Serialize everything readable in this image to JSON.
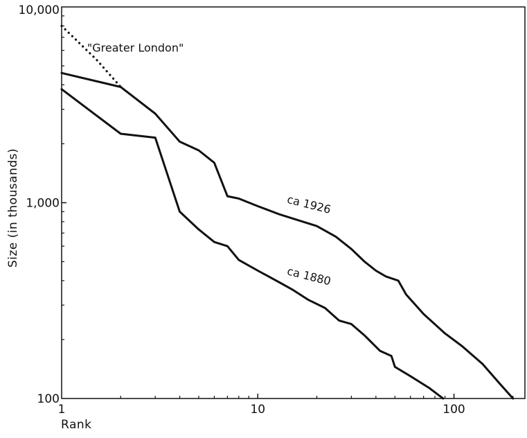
{
  "chart_data": {
    "type": "line",
    "title": "",
    "xlabel": "Rank",
    "ylabel": "Size (in thousands)",
    "x_scale": "log",
    "y_scale": "log",
    "xlim": [
      1,
      230
    ],
    "ylim": [
      100,
      10000
    ],
    "grid": false,
    "x_ticks": [
      {
        "value": 1,
        "label": "1"
      },
      {
        "value": 10,
        "label": "10"
      },
      {
        "value": 100,
        "label": "100"
      }
    ],
    "y_ticks": [
      {
        "value": 100,
        "label": "100"
      },
      {
        "value": 1000,
        "label": "1,000"
      },
      {
        "value": 10000,
        "label": "10,000"
      }
    ],
    "series": [
      {
        "name": "ca 1926",
        "style": "solid",
        "points": [
          [
            1,
            4600
          ],
          [
            2,
            3900
          ],
          [
            3,
            2850
          ],
          [
            4,
            2050
          ],
          [
            5,
            1850
          ],
          [
            6,
            1600
          ],
          [
            7,
            1080
          ],
          [
            8,
            1050
          ],
          [
            10,
            960
          ],
          [
            13,
            870
          ],
          [
            17,
            800
          ],
          [
            20,
            760
          ],
          [
            25,
            670
          ],
          [
            30,
            580
          ],
          [
            35,
            500
          ],
          [
            40,
            450
          ],
          [
            45,
            420
          ],
          [
            52,
            400
          ],
          [
            57,
            340
          ],
          [
            70,
            270
          ],
          [
            90,
            215
          ],
          [
            110,
            185
          ],
          [
            140,
            150
          ],
          [
            170,
            120
          ],
          [
            200,
            100
          ]
        ]
      },
      {
        "name": "ca 1880",
        "style": "solid",
        "points": [
          [
            1,
            3800
          ],
          [
            2,
            2250
          ],
          [
            3,
            2150
          ],
          [
            4,
            900
          ],
          [
            5,
            730
          ],
          [
            6,
            630
          ],
          [
            7,
            600
          ],
          [
            8,
            510
          ],
          [
            10,
            450
          ],
          [
            13,
            390
          ],
          [
            15,
            360
          ],
          [
            18,
            320
          ],
          [
            22,
            290
          ],
          [
            26,
            250
          ],
          [
            30,
            240
          ],
          [
            35,
            210
          ],
          [
            42,
            175
          ],
          [
            48,
            165
          ],
          [
            50,
            145
          ],
          [
            60,
            130
          ],
          [
            75,
            113
          ],
          [
            88,
            100
          ]
        ]
      },
      {
        "name": "\"Greater London\"",
        "style": "dotted",
        "points": [
          [
            1,
            8000
          ],
          [
            1.5,
            5400
          ],
          [
            2,
            3900
          ]
        ]
      }
    ],
    "annotations": [
      {
        "text": "\"Greater London\"",
        "x": 1.35,
        "y": 5900
      },
      {
        "text": "ca 1926",
        "x": 14,
        "y": 1000
      },
      {
        "text": "ca 1880",
        "x": 14,
        "y": 430
      }
    ]
  }
}
